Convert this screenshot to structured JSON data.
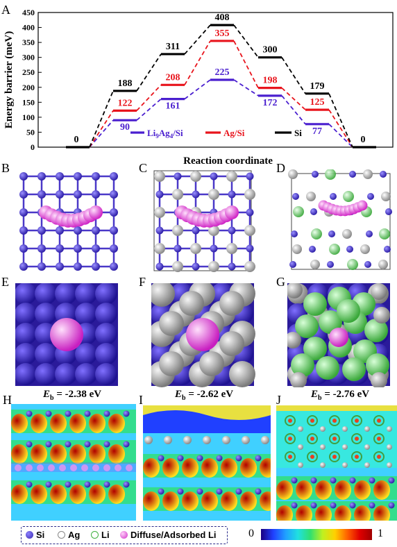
{
  "panels": {
    "A": "A",
    "B": "B",
    "C": "C",
    "D": "D",
    "E": "E",
    "F": "F",
    "G": "G",
    "H": "H",
    "I": "I",
    "J": "J"
  },
  "binding": {
    "E": "-2.38 eV",
    "F": "-2.62 eV",
    "G": "-2.76 eV",
    "prefix": "E",
    "sub": "b",
    "eq": " = "
  },
  "legend_bottom": {
    "si": "Si",
    "ag": "Ag",
    "li": "Li",
    "diffuse": "Diffuse/Adsorbed Li"
  },
  "colorbar": {
    "min": "0",
    "max": "1"
  },
  "colors": {
    "li9ag4": "#4a1fcf",
    "agsi": "#e8141c",
    "si": "#000000",
    "si_atom": "#4a3ad0",
    "ag_atom": "#b0b0b0",
    "li_atom": "#7fdc7f",
    "diffuse_li": "#ee7ae6"
  },
  "chart_data": {
    "type": "line",
    "title": "",
    "xlabel": "Reaction coordinate",
    "ylabel": "Energy barrier (meV)",
    "ylim": [
      0,
      450
    ],
    "yticks": [
      0,
      50,
      100,
      150,
      200,
      250,
      300,
      350,
      400,
      450
    ],
    "x": [
      0,
      1,
      2,
      3,
      4,
      5,
      6
    ],
    "series": [
      {
        "name": "Li9Ag4/Si",
        "name_main": "Li",
        "name_sub1": "9",
        "name_mid": "Ag",
        "name_sub2": "4",
        "name_tail": "/Si",
        "color": "#4a1fcf",
        "values": [
          0,
          90,
          161,
          225,
          172,
          77,
          0
        ]
      },
      {
        "name": "Ag/Si",
        "color": "#e8141c",
        "values": [
          0,
          122,
          208,
          355,
          198,
          125,
          0
        ]
      },
      {
        "name": "Si",
        "color": "#000000",
        "values": [
          0,
          188,
          311,
          408,
          300,
          179,
          0
        ]
      }
    ],
    "zero_labels": [
      "0",
      "0"
    ]
  }
}
